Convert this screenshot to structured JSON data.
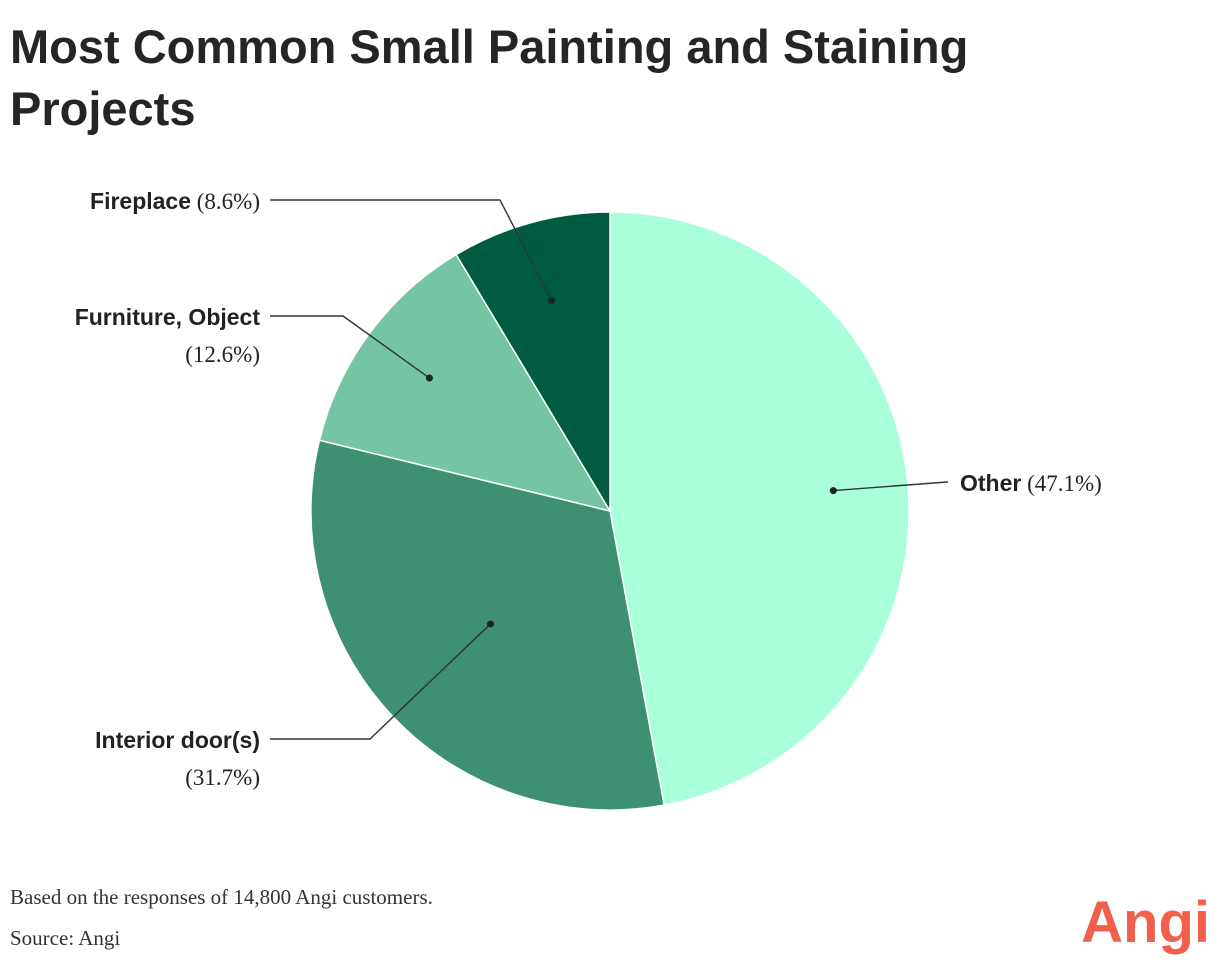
{
  "title": "Most Common Small Painting and Staining Projects",
  "footnote": "Based on the responses of 14,800 Angi customers.",
  "source": "Source: Angi",
  "logo": {
    "text": "Angi",
    "color": "#f2604c"
  },
  "chart_data": {
    "type": "pie",
    "start_angle_deg": 0,
    "direction": "clockwise",
    "slices": [
      {
        "label": "Other",
        "value": 47.1,
        "display": "(47.1%)",
        "color": "#aaffdb"
      },
      {
        "label": "Interior door(s)",
        "value": 31.7,
        "display": "(31.7%)",
        "color": "#3d9071"
      },
      {
        "label": "Furniture, Object",
        "value": 12.6,
        "display": "(12.6%)",
        "color": "#74c5a4"
      },
      {
        "label": "Fireplace",
        "value": 8.6,
        "display": "(8.6%)",
        "color": "#005c40"
      }
    ]
  }
}
